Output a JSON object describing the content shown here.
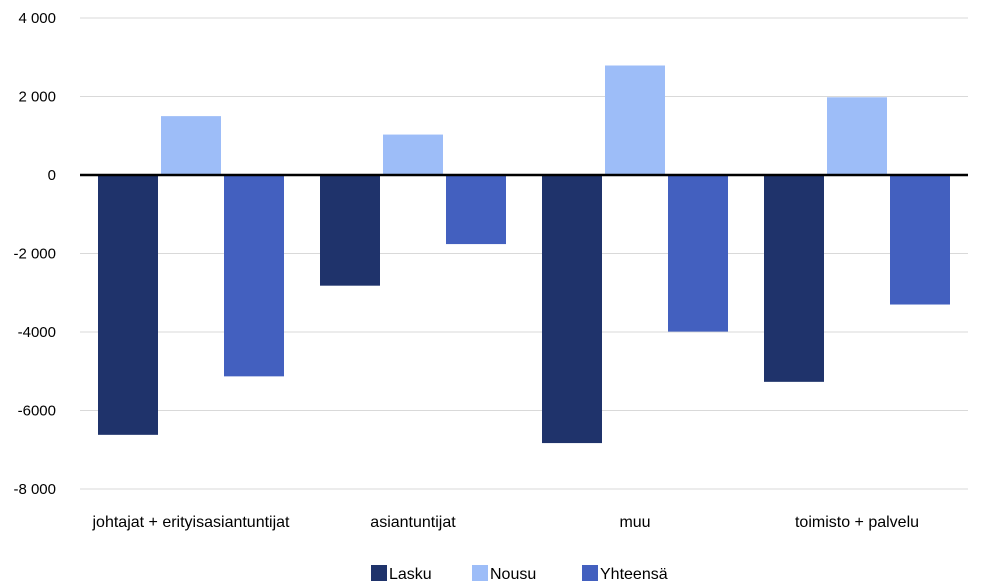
{
  "chart_data": {
    "type": "bar",
    "title": "",
    "xlabel": "",
    "ylabel": "",
    "categories": [
      "johtajat + erityisasiantuntijat",
      "asiantuntijat",
      "muu",
      "toimisto + palvelu"
    ],
    "series": [
      {
        "name": "Lasku",
        "color": "#1f336b",
        "values": [
          -6620,
          -2820,
          -6830,
          -5270
        ]
      },
      {
        "name": "Nousu",
        "color": "#9dbdf8",
        "values": [
          1500,
          1030,
          2790,
          1980
        ]
      },
      {
        "name": "Yhteensä",
        "color": "#4360bf",
        "values": [
          -5130,
          -1760,
          -3990,
          -3300
        ]
      }
    ],
    "ylim": [
      -8000,
      4000
    ],
    "yticks": [
      4000,
      2000,
      0,
      -2000,
      -4000,
      -6000,
      -8000
    ],
    "ytick_labels": [
      "4 000",
      "2 000",
      "0",
      "-2 000",
      "-4000",
      "-6000",
      "-8 000"
    ],
    "grid": true,
    "legend_position": "bottom"
  }
}
